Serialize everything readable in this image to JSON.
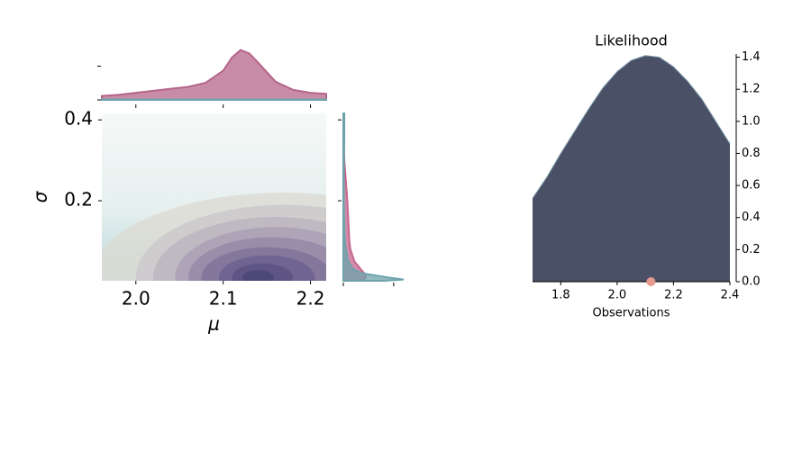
{
  "chart_data": [
    {
      "type": "contour",
      "xlabel": "μ",
      "ylabel": "σ",
      "xlim": [
        1.961,
        2.218
      ],
      "ylim": [
        0.002,
        0.416
      ],
      "xticks": [
        {
          "value": 2.0,
          "label": "2.0"
        },
        2.1,
        2.2
      ],
      "yticks": [
        0.2,
        0.4
      ],
      "contours": [
        {
          "mu": 2.17,
          "sigma": 0.01,
          "mu_radius": 0.22,
          "sigma_radius": 0.21,
          "color": "#dcdcd4"
        },
        {
          "mu": 2.17,
          "sigma": 0.01,
          "mu_radius": 0.17,
          "sigma_radius": 0.18,
          "color": "#cdc9cc"
        },
        {
          "mu": 2.16,
          "sigma": 0.01,
          "mu_radius": 0.14,
          "sigma_radius": 0.15,
          "color": "#bcb5c0"
        },
        {
          "mu": 2.16,
          "sigma": 0.01,
          "mu_radius": 0.115,
          "sigma_radius": 0.125,
          "color": "#aaa0b5"
        },
        {
          "mu": 2.155,
          "sigma": 0.01,
          "mu_radius": 0.095,
          "sigma_radius": 0.1,
          "color": "#968aa8"
        },
        {
          "mu": 2.15,
          "sigma": 0.01,
          "mu_radius": 0.075,
          "sigma_radius": 0.075,
          "color": "#80739a"
        },
        {
          "mu": 2.15,
          "sigma": 0.01,
          "mu_radius": 0.055,
          "sigma_radius": 0.055,
          "color": "#6c6190"
        },
        {
          "mu": 2.145,
          "sigma": 0.01,
          "mu_radius": 0.035,
          "sigma_radius": 0.035,
          "color": "#5a5282"
        },
        {
          "mu": 2.14,
          "sigma": 0.01,
          "mu_radius": 0.018,
          "sigma_radius": 0.018,
          "color": "#4a4673"
        }
      ]
    },
    {
      "type": "density",
      "orientation": "vertical",
      "x": [
        1.961,
        1.98,
        2.0,
        2.02,
        2.04,
        2.06,
        2.08,
        2.1,
        2.11,
        2.12,
        2.13,
        2.14,
        2.16,
        2.18,
        2.2,
        2.218
      ],
      "xlim": [
        1.961,
        2.218
      ],
      "xticks": [
        2.0,
        2.1,
        2.2
      ],
      "ylim": [
        0,
        10
      ],
      "yticks": [
        0,
        6.7
      ],
      "series": [
        {
          "color": "#b5658a",
          "values": [
            0.8,
            1.0,
            1.4,
            1.8,
            2.2,
            2.6,
            3.4,
            5.8,
            8.4,
            9.9,
            9.2,
            7.4,
            3.6,
            2.0,
            1.4,
            1.2
          ]
        },
        {
          "color": "#6fa3ac",
          "values": [
            0.1,
            0.1,
            0.1,
            0.1,
            0.1,
            0.1,
            0.1,
            0.1,
            0.1,
            0.1,
            0.1,
            0.1,
            0.1,
            0.1,
            0.1,
            0.1
          ]
        }
      ]
    },
    {
      "type": "density",
      "orientation": "horizontal",
      "x": [
        0.002,
        0.005,
        0.01,
        0.02,
        0.03,
        0.05,
        0.08,
        0.1,
        0.15,
        0.2,
        0.25,
        0.3,
        0.35,
        0.4,
        0.416
      ],
      "xlim": [
        0.002,
        0.416
      ],
      "xticks": [
        0.2,
        0.4
      ],
      "ylim": [
        0,
        1.2
      ],
      "yticks": [
        0,
        1.0
      ],
      "series": [
        {
          "color": "#c4668e",
          "values": [
            0.3,
            0.4,
            0.45,
            0.42,
            0.35,
            0.22,
            0.14,
            0.12,
            0.1,
            0.08,
            0.05,
            0.02,
            0.01,
            0.0,
            0.0
          ]
        },
        {
          "color": "#6fa3ac",
          "values": [
            0.8,
            1.2,
            0.9,
            0.4,
            0.2,
            0.1,
            0.05,
            0.03,
            0.02,
            0.01,
            0.01,
            0.01,
            0.02,
            0.02,
            0.02
          ]
        }
      ]
    },
    {
      "type": "area",
      "title": "Likelihood",
      "xlabel": "Observations",
      "x": [
        1.7,
        1.75,
        1.8,
        1.85,
        1.9,
        1.95,
        2.0,
        2.05,
        2.1,
        2.15,
        2.2,
        2.25,
        2.3,
        2.35,
        2.4
      ],
      "values": [
        0.52,
        0.65,
        0.8,
        0.94,
        1.08,
        1.21,
        1.31,
        1.38,
        1.41,
        1.4,
        1.34,
        1.25,
        1.14,
        1.0,
        0.86
      ],
      "color": "#4a5066",
      "line_color": "#7a9aa8",
      "xlim": [
        1.7,
        2.4
      ],
      "ylim": [
        0,
        1.42
      ],
      "xticks": [
        1.8,
        {
          "value": 2.0,
          "label": "2.0"
        },
        2.2,
        2.4
      ],
      "yticks": [
        {
          "value": 0,
          "label": "0.0"
        },
        0.2,
        0.4,
        0.6,
        0.8,
        {
          "value": 1.0,
          "label": "1.0"
        },
        1.2,
        1.4
      ],
      "observations": [
        2.12
      ],
      "observation_color": "#e8998d"
    }
  ]
}
